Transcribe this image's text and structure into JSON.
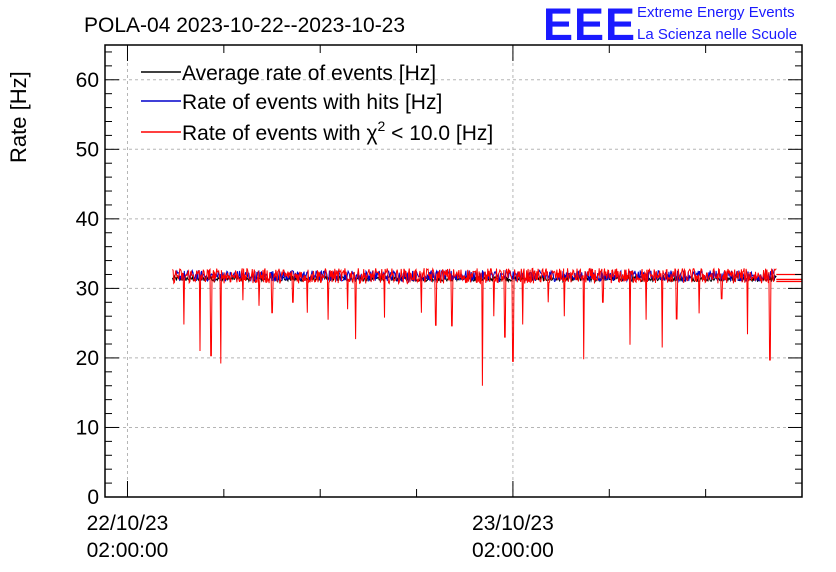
{
  "chart_data": {
    "type": "line",
    "title": "POLA-04 2023-10-22--2023-10-23",
    "ylabel": "Rate [Hz]",
    "xlabel": "",
    "ylim": [
      0,
      65
    ],
    "yticks": [
      0,
      10,
      20,
      30,
      40,
      50,
      60
    ],
    "xlim_hours": [
      -1.4,
      42.0
    ],
    "xticks": [
      {
        "hour": 0,
        "date": "22/10/23",
        "time": "02:00:00"
      },
      {
        "hour": 24,
        "date": "23/10/23",
        "time": "02:00:00"
      }
    ],
    "legend": {
      "position": "top-left",
      "entries": [
        {
          "label": "Average rate of events [Hz]",
          "color": "#000000"
        },
        {
          "label": "Rate of events with hits [Hz]",
          "color": "#0000cc"
        },
        {
          "label_prefix": "Rate of events with ",
          "symbol": "χ",
          "superscript": "2",
          "label_suffix": " < 10.0 [Hz]",
          "color": "#ff0000"
        }
      ]
    },
    "series": [
      {
        "name": "Average rate of events [Hz]",
        "color": "#000000",
        "start_hour": 2.8,
        "end_hour": 40.4,
        "mean": 31.4,
        "noise": 0.4
      },
      {
        "name": "Rate of events with hits [Hz]",
        "color": "#0000cc",
        "start_hour": 3.0,
        "end_hour": 40.3,
        "mean": 31.8,
        "noise": 0.8
      },
      {
        "name": "Rate of events with chi2 < 10.0 [Hz]",
        "color": "#ff0000",
        "start_hour": 2.8,
        "end_hour": 40.4,
        "mean": 31.8,
        "noise": 1.1,
        "dips": [
          {
            "hour": 3.5,
            "value": 24.8
          },
          {
            "hour": 4.5,
            "value": 21.0
          },
          {
            "hour": 5.2,
            "value": 20.3
          },
          {
            "hour": 5.8,
            "value": 19.2
          },
          {
            "hour": 7.2,
            "value": 28.3
          },
          {
            "hour": 8.2,
            "value": 27.5
          },
          {
            "hour": 9.0,
            "value": 26.5
          },
          {
            "hour": 10.3,
            "value": 28.0
          },
          {
            "hour": 11.2,
            "value": 26.5
          },
          {
            "hour": 12.5,
            "value": 25.5
          },
          {
            "hour": 13.7,
            "value": 27.0
          },
          {
            "hour": 14.2,
            "value": 22.7
          },
          {
            "hour": 16.0,
            "value": 25.8
          },
          {
            "hour": 18.3,
            "value": 26.5
          },
          {
            "hour": 19.2,
            "value": 24.7
          },
          {
            "hour": 20.2,
            "value": 24.6
          },
          {
            "hour": 22.1,
            "value": 16.0
          },
          {
            "hour": 22.8,
            "value": 26.0
          },
          {
            "hour": 23.5,
            "value": 23.0
          },
          {
            "hour": 24.0,
            "value": 19.5
          },
          {
            "hour": 24.6,
            "value": 24.8
          },
          {
            "hour": 26.2,
            "value": 28.0
          },
          {
            "hour": 27.2,
            "value": 26.0
          },
          {
            "hour": 28.4,
            "value": 19.8
          },
          {
            "hour": 29.6,
            "value": 28.0
          },
          {
            "hour": 31.3,
            "value": 21.9
          },
          {
            "hour": 32.3,
            "value": 25.5
          },
          {
            "hour": 33.3,
            "value": 21.5
          },
          {
            "hour": 34.2,
            "value": 25.6
          },
          {
            "hour": 35.6,
            "value": 26.4
          },
          {
            "hour": 38.6,
            "value": 23.4
          },
          {
            "hour": 40.0,
            "value": 19.7
          },
          {
            "hour": 37.0,
            "value": 28.5
          }
        ]
      }
    ],
    "tail_lines": [
      {
        "start_hour": 40.4,
        "value": 32.0,
        "color": "#ff0000"
      },
      {
        "start_hour": 40.4,
        "value": 31.0,
        "color": "#ff0000"
      },
      {
        "start_hour": 40.4,
        "value": 31.3,
        "color": "#ff0000"
      }
    ]
  },
  "logo": {
    "letters": "EEE",
    "line1": "Extreme Energy Events",
    "line2": "La Scienza nelle Scuole",
    "color": "#1a1aff"
  }
}
